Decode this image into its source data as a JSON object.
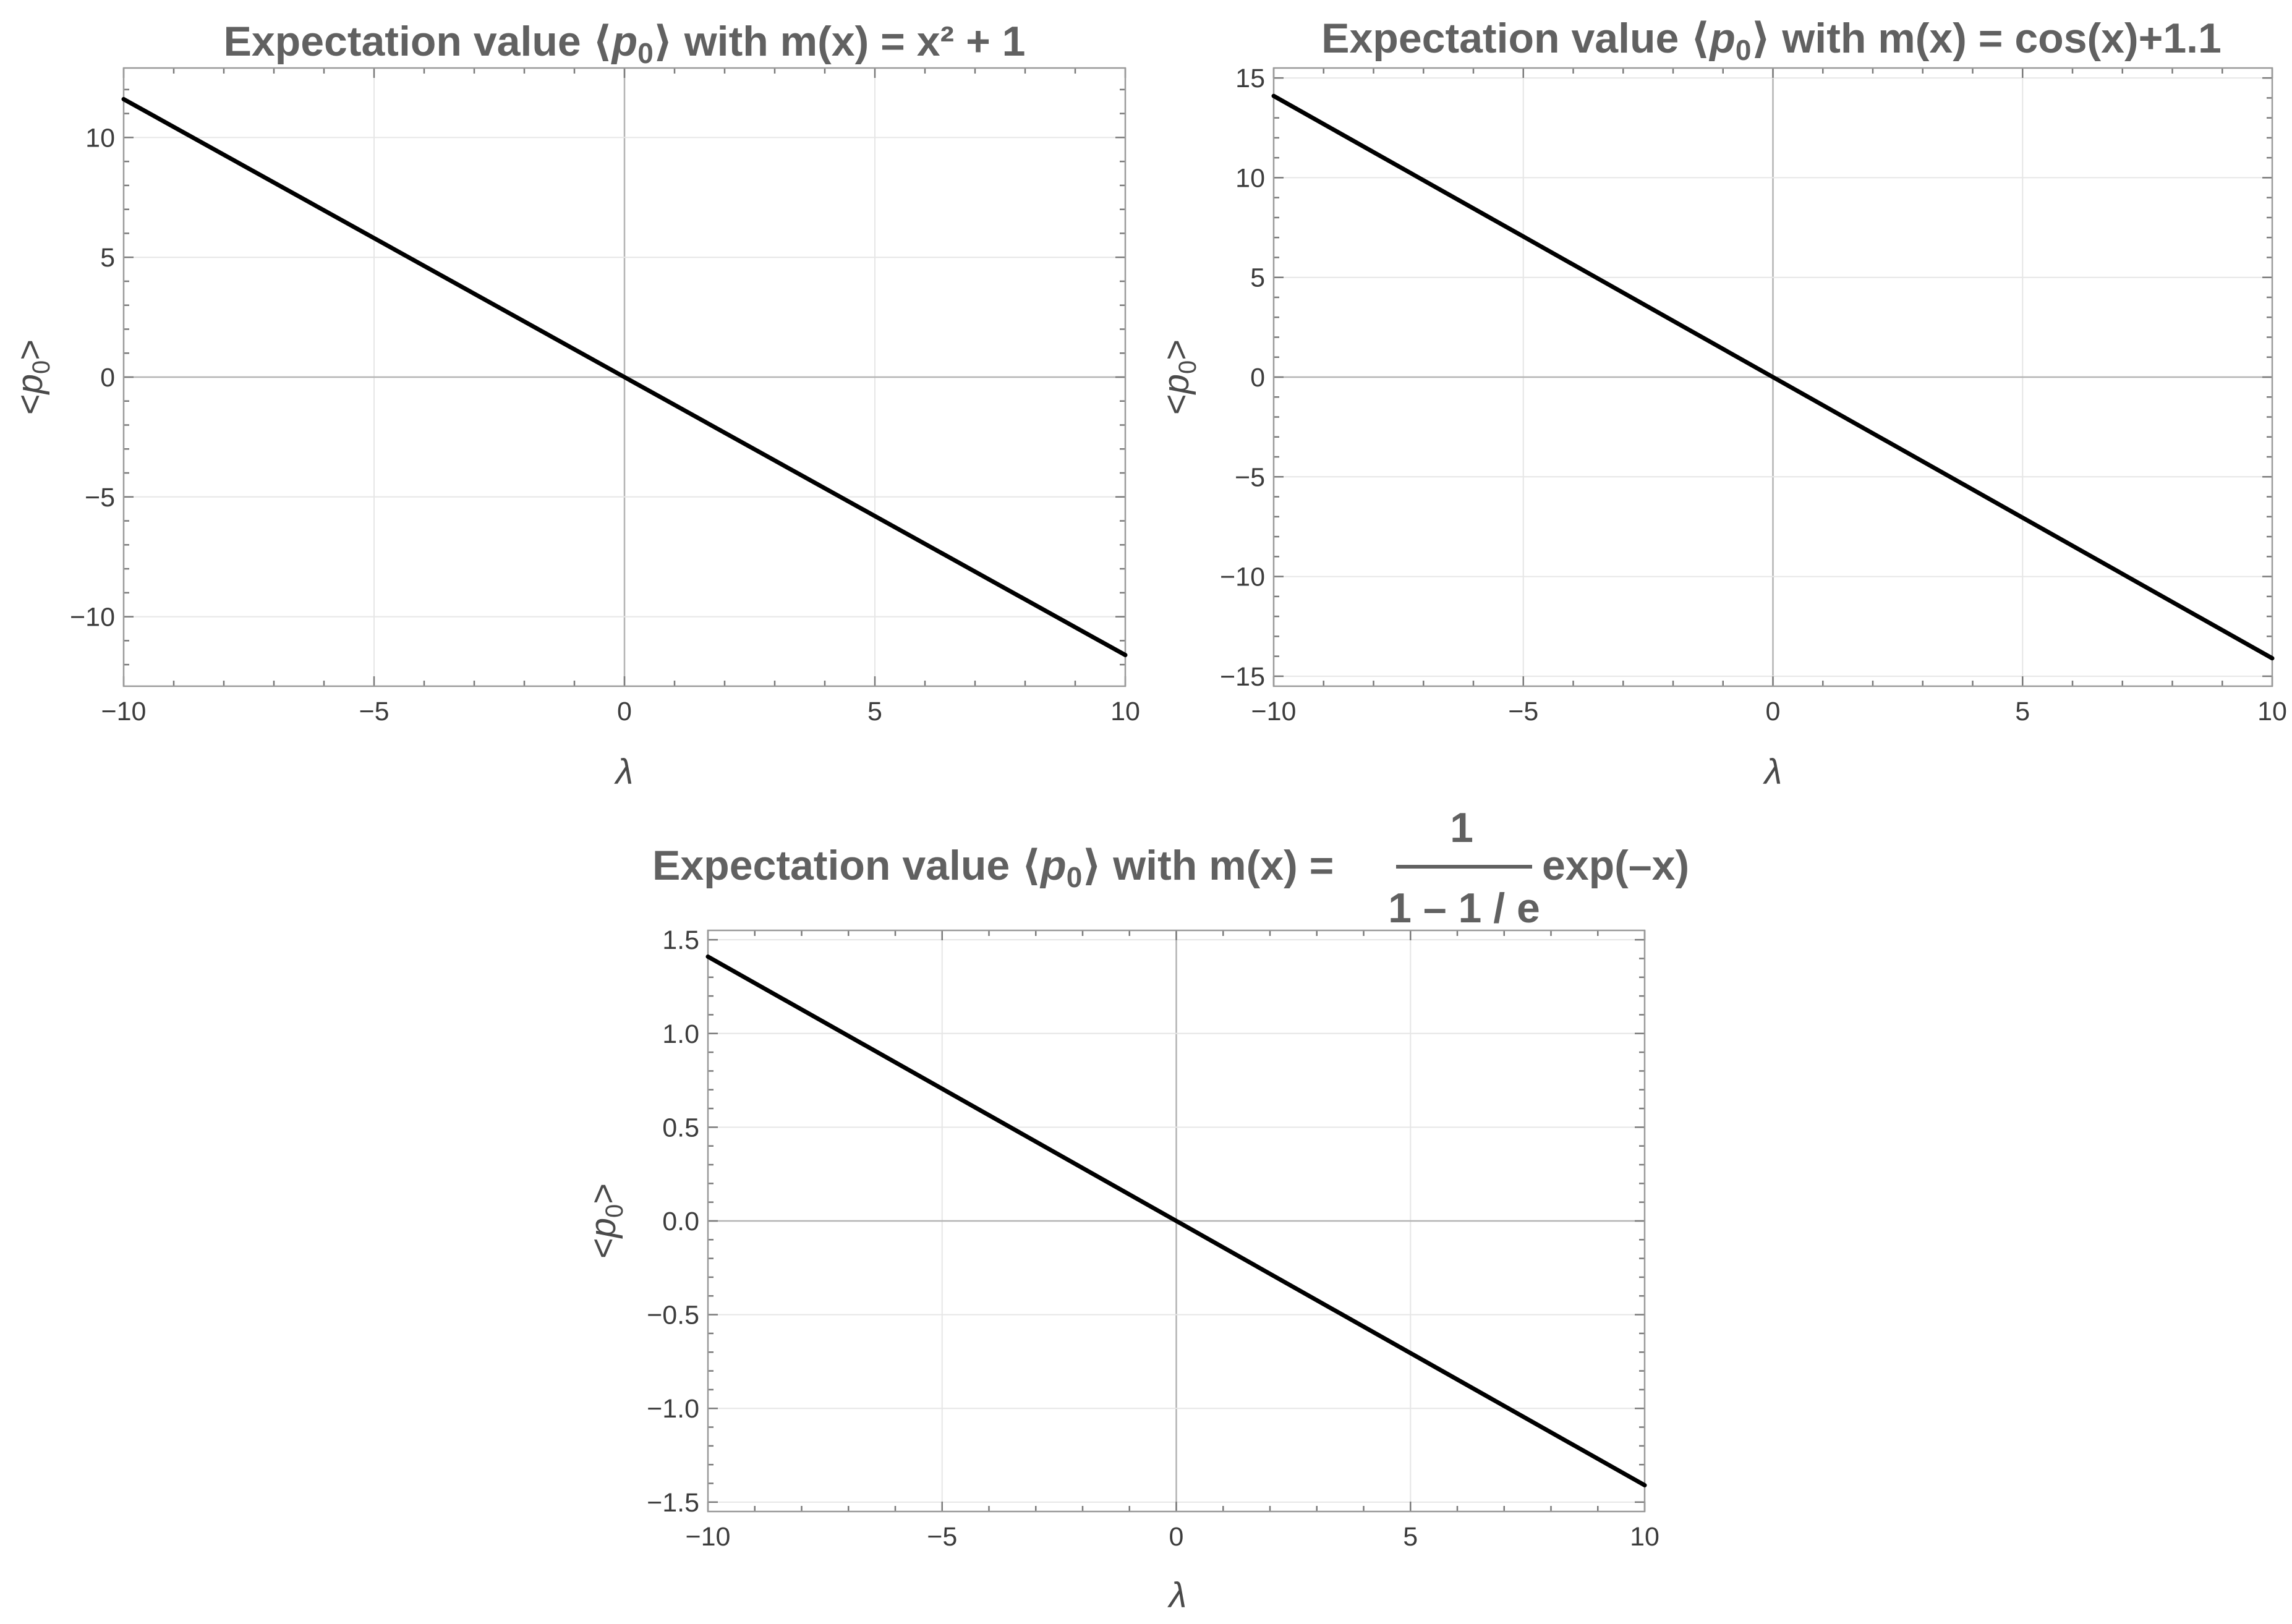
{
  "chart_data": [
    {
      "type": "line",
      "title": {
        "prefix": "Expectation value ⟨",
        "symbol": "p",
        "subscript": "0",
        "suffix": "⟩ with m(x) = x² + 1"
      },
      "xlabel": "λ",
      "ylabel": {
        "lt": "<",
        "symbol": "p",
        "subscript": "0",
        "gt": ">"
      },
      "xlim": [
        -10,
        10
      ],
      "ylim": [
        -12.9,
        12.9
      ],
      "xticks": [
        -10,
        -5,
        0,
        5,
        10
      ],
      "yticks": [
        -10,
        -5,
        0,
        5,
        10
      ],
      "x_tick_labels": [
        "−10",
        "−5",
        "0",
        "5",
        "10"
      ],
      "y_tick_labels": [
        "−10",
        "−5",
        "0",
        "5",
        "10"
      ],
      "grid": true,
      "series": [
        {
          "name": "<p0>",
          "x": [
            -10,
            -5,
            0,
            5,
            10
          ],
          "y": [
            11.6,
            5.8,
            0,
            -5.8,
            -11.6
          ]
        }
      ]
    },
    {
      "type": "line",
      "title": {
        "prefix": "Expectation value ⟨",
        "symbol": "p",
        "subscript": "0",
        "suffix": "⟩ with m(x) = cos(x)+1.1"
      },
      "xlabel": "λ",
      "ylabel": {
        "lt": "<",
        "symbol": "p",
        "subscript": "0",
        "gt": ">"
      },
      "xlim": [
        -10,
        10
      ],
      "ylim": [
        -15.5,
        15.5
      ],
      "xticks": [
        -10,
        -5,
        0,
        5,
        10
      ],
      "yticks": [
        -15,
        -10,
        -5,
        0,
        5,
        10,
        15
      ],
      "x_tick_labels": [
        "−10",
        "−5",
        "0",
        "5",
        "10"
      ],
      "y_tick_labels": [
        "−15",
        "−10",
        "−5",
        "0",
        "5",
        "10",
        "15"
      ],
      "grid": true,
      "series": [
        {
          "name": "<p0>",
          "x": [
            -10,
            -5,
            0,
            5,
            10
          ],
          "y": [
            14.1,
            7.05,
            0,
            -7.05,
            -14.1
          ]
        }
      ]
    },
    {
      "type": "line",
      "title": {
        "prefix": "Expectation value ⟨",
        "symbol": "p",
        "subscript": "0",
        "suffix": "⟩ with m(x) =",
        "frac_num": "1",
        "frac_den": "1 – 1 / e",
        "frac_after": "exp(–x)"
      },
      "xlabel": "λ",
      "ylabel": {
        "lt": "<",
        "symbol": "p",
        "subscript": "0",
        "gt": ">"
      },
      "xlim": [
        -10,
        10
      ],
      "ylim": [
        -1.55,
        1.55
      ],
      "xticks": [
        -10,
        -5,
        0,
        5,
        10
      ],
      "yticks": [
        -1.5,
        -1.0,
        -0.5,
        0.0,
        0.5,
        1.0,
        1.5
      ],
      "x_tick_labels": [
        "−10",
        "−5",
        "0",
        "5",
        "10"
      ],
      "y_tick_labels": [
        "−1.5",
        "−1.0",
        "−0.5",
        "0.0",
        "0.5",
        "1.0",
        "1.5"
      ],
      "grid": true,
      "series": [
        {
          "name": "<p0>",
          "x": [
            -10,
            -5,
            0,
            5,
            10
          ],
          "y": [
            1.41,
            0.705,
            0,
            -0.705,
            -1.41
          ]
        }
      ]
    }
  ]
}
